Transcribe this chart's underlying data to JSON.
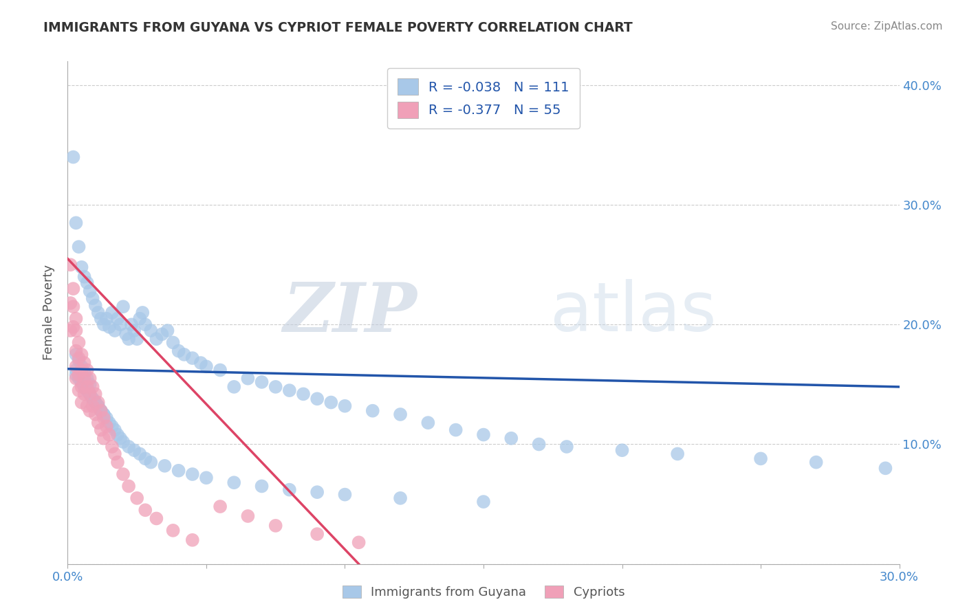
{
  "title": "IMMIGRANTS FROM GUYANA VS CYPRIOT FEMALE POVERTY CORRELATION CHART",
  "source": "Source: ZipAtlas.com",
  "ylabel": "Female Poverty",
  "xlim": [
    0.0,
    0.3
  ],
  "ylim": [
    0.0,
    0.42
  ],
  "blue_R": -0.038,
  "blue_N": 111,
  "pink_R": -0.377,
  "pink_N": 55,
  "blue_color": "#A8C8E8",
  "pink_color": "#F0A0B8",
  "blue_line_color": "#2255AA",
  "pink_line_color": "#DD4466",
  "legend_label_blue": "Immigrants from Guyana",
  "legend_label_pink": "Cypriots",
  "watermark_zip": "ZIP",
  "watermark_atlas": "atlas",
  "blue_trend_x": [
    0.0,
    0.3
  ],
  "blue_trend_y": [
    0.163,
    0.148
  ],
  "pink_trend_x": [
    0.0,
    0.105
  ],
  "pink_trend_y": [
    0.255,
    0.0
  ],
  "blue_dots_x": [
    0.002,
    0.003,
    0.004,
    0.005,
    0.006,
    0.007,
    0.008,
    0.009,
    0.01,
    0.011,
    0.012,
    0.013,
    0.014,
    0.015,
    0.016,
    0.017,
    0.018,
    0.019,
    0.02,
    0.021,
    0.022,
    0.023,
    0.024,
    0.025,
    0.026,
    0.027,
    0.028,
    0.03,
    0.032,
    0.034,
    0.036,
    0.038,
    0.04,
    0.042,
    0.045,
    0.048,
    0.05,
    0.055,
    0.06,
    0.065,
    0.07,
    0.075,
    0.08,
    0.085,
    0.09,
    0.095,
    0.1,
    0.11,
    0.12,
    0.13,
    0.14,
    0.15,
    0.16,
    0.17,
    0.18,
    0.2,
    0.22,
    0.25,
    0.27,
    0.295,
    0.003,
    0.004,
    0.005,
    0.006,
    0.007,
    0.008,
    0.003,
    0.004,
    0.005,
    0.006,
    0.007,
    0.008,
    0.009,
    0.01,
    0.011,
    0.012,
    0.013,
    0.014,
    0.015,
    0.016,
    0.017,
    0.018,
    0.019,
    0.02,
    0.022,
    0.024,
    0.026,
    0.028,
    0.03,
    0.035,
    0.04,
    0.045,
    0.05,
    0.06,
    0.07,
    0.08,
    0.09,
    0.1,
    0.12,
    0.15,
    0.003,
    0.004,
    0.005,
    0.006,
    0.007,
    0.008,
    0.009,
    0.01,
    0.011,
    0.012,
    0.013
  ],
  "blue_dots_y": [
    0.34,
    0.285,
    0.265,
    0.248,
    0.24,
    0.235,
    0.228,
    0.222,
    0.216,
    0.21,
    0.205,
    0.2,
    0.205,
    0.198,
    0.21,
    0.195,
    0.205,
    0.2,
    0.215,
    0.192,
    0.188,
    0.2,
    0.195,
    0.188,
    0.205,
    0.21,
    0.2,
    0.195,
    0.188,
    0.192,
    0.195,
    0.185,
    0.178,
    0.175,
    0.172,
    0.168,
    0.165,
    0.162,
    0.148,
    0.155,
    0.152,
    0.148,
    0.145,
    0.142,
    0.138,
    0.135,
    0.132,
    0.128,
    0.125,
    0.118,
    0.112,
    0.108,
    0.105,
    0.1,
    0.098,
    0.095,
    0.092,
    0.088,
    0.085,
    0.08,
    0.175,
    0.17,
    0.165,
    0.16,
    0.155,
    0.15,
    0.162,
    0.158,
    0.152,
    0.148,
    0.145,
    0.142,
    0.138,
    0.135,
    0.132,
    0.128,
    0.125,
    0.122,
    0.118,
    0.115,
    0.112,
    0.108,
    0.105,
    0.102,
    0.098,
    0.095,
    0.092,
    0.088,
    0.085,
    0.082,
    0.078,
    0.075,
    0.072,
    0.068,
    0.065,
    0.062,
    0.06,
    0.058,
    0.055,
    0.052,
    0.158,
    0.155,
    0.152,
    0.148,
    0.145,
    0.142,
    0.138,
    0.135,
    0.132,
    0.128,
    0.125
  ],
  "pink_dots_x": [
    0.001,
    0.001,
    0.001,
    0.002,
    0.002,
    0.002,
    0.003,
    0.003,
    0.003,
    0.003,
    0.003,
    0.004,
    0.004,
    0.004,
    0.004,
    0.005,
    0.005,
    0.005,
    0.005,
    0.006,
    0.006,
    0.006,
    0.007,
    0.007,
    0.007,
    0.008,
    0.008,
    0.008,
    0.009,
    0.009,
    0.01,
    0.01,
    0.011,
    0.011,
    0.012,
    0.012,
    0.013,
    0.013,
    0.014,
    0.015,
    0.016,
    0.017,
    0.018,
    0.02,
    0.022,
    0.025,
    0.028,
    0.032,
    0.038,
    0.045,
    0.055,
    0.065,
    0.075,
    0.09,
    0.105
  ],
  "pink_dots_y": [
    0.25,
    0.218,
    0.195,
    0.23,
    0.215,
    0.198,
    0.205,
    0.195,
    0.178,
    0.165,
    0.155,
    0.185,
    0.172,
    0.158,
    0.145,
    0.175,
    0.162,
    0.148,
    0.135,
    0.168,
    0.155,
    0.142,
    0.162,
    0.148,
    0.132,
    0.155,
    0.142,
    0.128,
    0.148,
    0.132,
    0.142,
    0.125,
    0.135,
    0.118,
    0.128,
    0.112,
    0.122,
    0.105,
    0.115,
    0.108,
    0.098,
    0.092,
    0.085,
    0.075,
    0.065,
    0.055,
    0.045,
    0.038,
    0.028,
    0.02,
    0.048,
    0.04,
    0.032,
    0.025,
    0.018
  ]
}
